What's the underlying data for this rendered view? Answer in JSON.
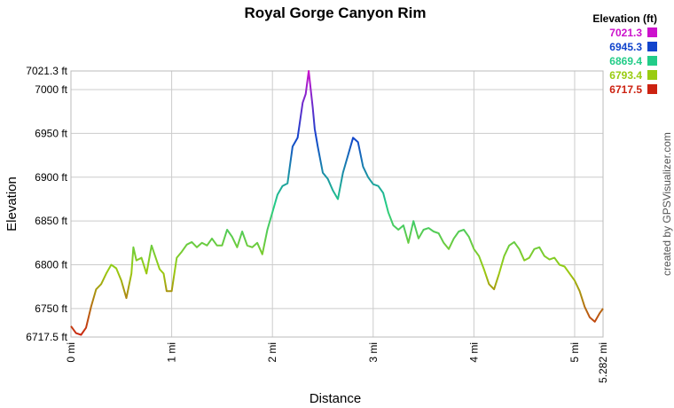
{
  "chart_data": {
    "type": "line",
    "title": "Royal Gorge Canyon Rim",
    "xlabel": "Distance",
    "ylabel": "Elevation",
    "xlim": [
      0,
      5.282
    ],
    "ylim": [
      6717.5,
      7021.3
    ],
    "x_ticks": [
      0,
      1,
      2,
      3,
      4,
      5,
      5.282
    ],
    "x_tick_labels": [
      "0 mi",
      "1 mi",
      "2 mi",
      "3 mi",
      "4 mi",
      "5 mi",
      "5.282 mi"
    ],
    "y_ticks": [
      6717.5,
      6750,
      6800,
      6850,
      6900,
      6950,
      7000,
      7021.3
    ],
    "y_tick_labels": [
      "6717.5 ft",
      "6750 ft",
      "6800 ft",
      "6850 ft",
      "6900 ft",
      "6950 ft",
      "7000 ft",
      "7021.3 ft"
    ],
    "grid": true,
    "legend": {
      "title": "Elevation (ft)",
      "placement": "top-right",
      "entries": [
        {
          "label": "7021.3",
          "color": "#cc11cc"
        },
        {
          "label": "6945.3",
          "color": "#1144cc"
        },
        {
          "label": "6869.4",
          "color": "#22cc88"
        },
        {
          "label": "6793.4",
          "color": "#99cc11"
        },
        {
          "label": "6717.5",
          "color": "#cc2211"
        }
      ]
    },
    "series": [
      {
        "x": [
          0,
          0.05,
          0.1,
          0.15,
          0.2,
          0.25,
          0.3,
          0.35,
          0.4,
          0.45,
          0.5,
          0.55,
          0.6,
          0.62,
          0.65,
          0.7,
          0.75,
          0.8,
          0.85,
          0.88,
          0.92,
          0.95,
          1.0,
          1.05,
          1.1,
          1.15,
          1.2,
          1.25,
          1.3,
          1.35,
          1.4,
          1.45,
          1.5,
          1.55,
          1.6,
          1.65,
          1.7,
          1.75,
          1.8,
          1.85,
          1.9,
          1.95,
          2.0,
          2.05,
          2.1,
          2.15,
          2.2,
          2.25,
          2.3,
          2.33,
          2.36,
          2.38,
          2.4,
          2.42,
          2.45,
          2.5,
          2.55,
          2.6,
          2.65,
          2.7,
          2.75,
          2.8,
          2.85,
          2.9,
          2.95,
          3.0,
          3.05,
          3.1,
          3.15,
          3.2,
          3.25,
          3.3,
          3.35,
          3.4,
          3.45,
          3.5,
          3.55,
          3.6,
          3.65,
          3.7,
          3.75,
          3.8,
          3.85,
          3.9,
          3.95,
          4.0,
          4.05,
          4.1,
          4.15,
          4.2,
          4.25,
          4.3,
          4.35,
          4.4,
          4.45,
          4.5,
          4.55,
          4.6,
          4.65,
          4.7,
          4.75,
          4.8,
          4.85,
          4.9,
          4.95,
          5.0,
          5.05,
          5.1,
          5.15,
          5.2,
          5.25,
          5.282
        ],
        "y": [
          6730,
          6722,
          6720,
          6728,
          6752,
          6772,
          6778,
          6790,
          6800,
          6796,
          6782,
          6762,
          6790,
          6820,
          6805,
          6808,
          6790,
          6822,
          6805,
          6795,
          6790,
          6770,
          6770,
          6808,
          6815,
          6823,
          6826,
          6820,
          6825,
          6822,
          6830,
          6822,
          6822,
          6840,
          6832,
          6820,
          6838,
          6822,
          6820,
          6825,
          6812,
          6840,
          6860,
          6880,
          6890,
          6893,
          6935,
          6945,
          6985,
          6995,
          7021.3,
          7000,
          6980,
          6955,
          6935,
          6905,
          6898,
          6885,
          6875,
          6905,
          6925,
          6945,
          6940,
          6912,
          6900,
          6892,
          6890,
          6882,
          6860,
          6845,
          6840,
          6845,
          6825,
          6850,
          6830,
          6840,
          6842,
          6838,
          6836,
          6825,
          6818,
          6830,
          6838,
          6840,
          6832,
          6818,
          6810,
          6795,
          6778,
          6772,
          6790,
          6810,
          6822,
          6826,
          6818,
          6805,
          6808,
          6818,
          6820,
          6810,
          6806,
          6808,
          6800,
          6798,
          6790,
          6782,
          6770,
          6752,
          6740,
          6735,
          6745,
          6750
        ]
      }
    ]
  },
  "credit": "created by GPSVisualizer.com"
}
